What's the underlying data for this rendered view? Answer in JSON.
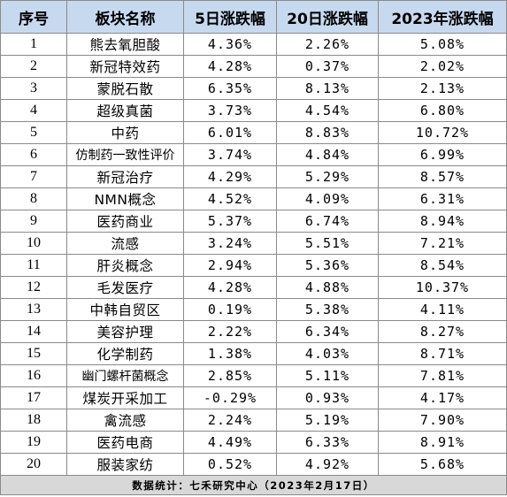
{
  "headers": {
    "index": "序号",
    "sector": "板块名称",
    "d5": "5日涨跌幅",
    "d20": "20日涨跌幅",
    "y2023": "2023年涨跌幅"
  },
  "rows": [
    {
      "index": "1",
      "sector": "熊去氧胆酸",
      "d5": "4.36%",
      "d20": "2.26%",
      "y2023": "5.08%"
    },
    {
      "index": "2",
      "sector": "新冠特效药",
      "d5": "4.28%",
      "d20": "0.37%",
      "y2023": "2.02%"
    },
    {
      "index": "3",
      "sector": "蒙脱石散",
      "d5": "6.35%",
      "d20": "8.13%",
      "y2023": "2.13%"
    },
    {
      "index": "4",
      "sector": "超级真菌",
      "d5": "3.73%",
      "d20": "4.54%",
      "y2023": "6.80%"
    },
    {
      "index": "5",
      "sector": "中药",
      "d5": "6.01%",
      "d20": "8.83%",
      "y2023": "10.72%"
    },
    {
      "index": "6",
      "sector": "仿制药一致性评价",
      "d5": "3.74%",
      "d20": "4.84%",
      "y2023": "6.99%"
    },
    {
      "index": "7",
      "sector": "新冠治疗",
      "d5": "4.29%",
      "d20": "5.29%",
      "y2023": "8.57%"
    },
    {
      "index": "8",
      "sector": "NMN概念",
      "d5": "4.52%",
      "d20": "4.09%",
      "y2023": "6.31%"
    },
    {
      "index": "9",
      "sector": "医药商业",
      "d5": "5.37%",
      "d20": "6.74%",
      "y2023": "8.94%"
    },
    {
      "index": "10",
      "sector": "流感",
      "d5": "3.24%",
      "d20": "5.51%",
      "y2023": "7.21%"
    },
    {
      "index": "11",
      "sector": "肝炎概念",
      "d5": "2.94%",
      "d20": "5.36%",
      "y2023": "8.54%"
    },
    {
      "index": "12",
      "sector": "毛发医疗",
      "d5": "4.28%",
      "d20": "4.88%",
      "y2023": "10.37%"
    },
    {
      "index": "13",
      "sector": "中韩自贸区",
      "d5": "0.19%",
      "d20": "5.38%",
      "y2023": "4.11%"
    },
    {
      "index": "14",
      "sector": "美容护理",
      "d5": "2.22%",
      "d20": "6.34%",
      "y2023": "8.27%"
    },
    {
      "index": "15",
      "sector": "化学制药",
      "d5": "1.38%",
      "d20": "4.03%",
      "y2023": "8.71%"
    },
    {
      "index": "16",
      "sector": "幽门螺杆菌概念",
      "d5": "2.85%",
      "d20": "5.11%",
      "y2023": "7.81%"
    },
    {
      "index": "17",
      "sector": "煤炭开采加工",
      "d5": "-0.29%",
      "d20": "0.93%",
      "y2023": "4.17%"
    },
    {
      "index": "18",
      "sector": "禽流感",
      "d5": "2.24%",
      "d20": "5.19%",
      "y2023": "7.90%"
    },
    {
      "index": "19",
      "sector": "医药电商",
      "d5": "4.49%",
      "d20": "6.33%",
      "y2023": "8.91%"
    },
    {
      "index": "20",
      "sector": "服装家纺",
      "d5": "0.52%",
      "d20": "4.92%",
      "y2023": "5.68%"
    }
  ],
  "footer": "数据统计：七禾研究中心（2023年2月17日）",
  "colors": {
    "header_bg": "#c7d9ef",
    "footer_bg": "#d8d8d8",
    "border": "#8a8a8a"
  }
}
